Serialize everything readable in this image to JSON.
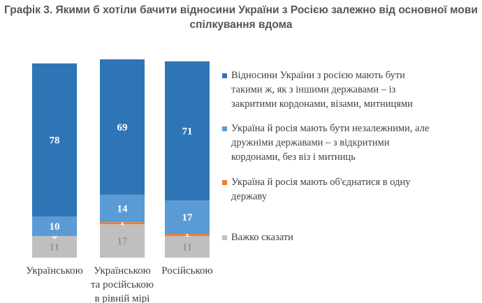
{
  "chart_data": {
    "type": "stacked-bar",
    "title": "Графік 3. Якими б хотіли бачити відносини України з Росією залежно від основної мови спілкування вдома",
    "categories": [
      "Українською",
      "Українською та російською в рівній мірі",
      "Російською"
    ],
    "category_lines": [
      [
        "Українською"
      ],
      [
        "Українською",
        "та російською",
        "в рівній мірі"
      ],
      [
        "Російською"
      ]
    ],
    "series": [
      {
        "name": "Відносини України з росією мають бути такими ж, як з іншими державами  – із закритими кордонами, візами, митницями",
        "lines": [
          "Відносини України з росією мають бути",
          "такими ж, як з іншими державами  – із",
          "закритими кордонами, візами, митницями"
        ],
        "color": "#2e75b6",
        "values": [
          78,
          69,
          71
        ]
      },
      {
        "name": "Україна й росія мають бути незалежними, але дружніми державами  – з відкритими кордонами, без віз і митниць",
        "lines": [
          "Україна й росія мають бути незалежними, але",
          "дружніми державами  – з відкритими",
          "кордонами, без віз і митниць"
        ],
        "color": "#5b9bd5",
        "values": [
          10,
          14,
          17
        ]
      },
      {
        "name": "Україна й росія мають об'єднатися в одну державу",
        "lines": [
          "Україна й росія мають об'єднатися в одну",
          "державу"
        ],
        "color": "#ed7d31",
        "values": [
          0,
          1,
          1
        ]
      },
      {
        "name": "Важко сказати",
        "lines": [
          "Важко сказати"
        ],
        "color": "#bfbfbf",
        "values": [
          11,
          17,
          11
        ]
      }
    ],
    "legend_position": "right",
    "grid": false
  }
}
